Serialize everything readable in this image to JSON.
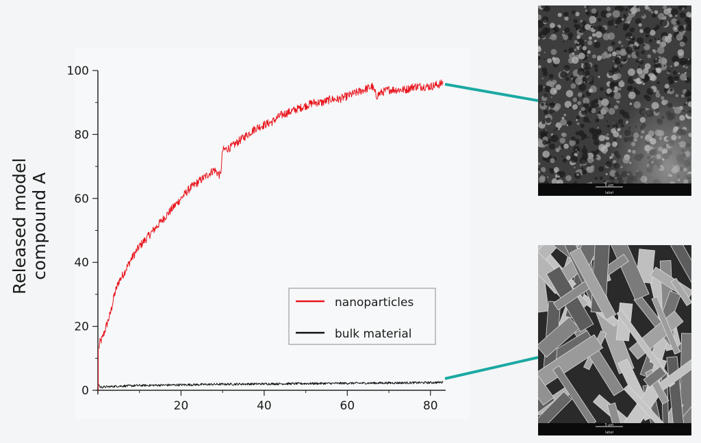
{
  "chart_data": {
    "type": "line",
    "ylabel": [
      "Released model",
      "compound A"
    ],
    "xlabel": "",
    "xlim": [
      0,
      83
    ],
    "ylim": [
      0,
      100
    ],
    "xticks": [
      20,
      40,
      60,
      80
    ],
    "yticks": [
      0,
      20,
      40,
      60,
      80,
      100
    ],
    "legend_position": "lower-right",
    "grid": false,
    "series": [
      {
        "name": "nanoparticles",
        "color": "#e8131b",
        "x": [
          0.2,
          0.5,
          1,
          2,
          3,
          4,
          5,
          6,
          8,
          10,
          12,
          14,
          16,
          18,
          20,
          22,
          24,
          26,
          28,
          29.5,
          30,
          32,
          34,
          36,
          38,
          40,
          42,
          44,
          46,
          48,
          50,
          52,
          54,
          56,
          58,
          60,
          62,
          64,
          66,
          67,
          68,
          70,
          72,
          74,
          76,
          78,
          80,
          83
        ],
        "y": [
          13,
          15,
          16,
          20,
          24,
          30,
          34,
          36,
          41,
          45,
          48,
          51,
          54,
          57,
          60,
          63,
          65,
          67,
          69,
          67,
          75,
          76,
          78,
          80,
          82,
          83,
          84,
          86,
          87,
          88,
          89,
          90,
          90,
          91,
          91,
          92,
          93,
          94,
          95,
          92,
          93,
          94,
          94,
          94,
          95,
          95,
          95,
          96
        ]
      },
      {
        "name": "bulk material",
        "color": "#111111",
        "x": [
          0.2,
          0.5,
          1,
          5,
          10,
          20,
          30,
          40,
          50,
          60,
          70,
          80,
          83
        ],
        "y": [
          2,
          1,
          1,
          1.3,
          1.5,
          1.7,
          1.9,
          2,
          2.1,
          2.2,
          2.3,
          2.4,
          2.5
        ]
      }
    ]
  },
  "images": [
    {
      "icon": "sem-micrograph-porous-network",
      "scalebar_text": "5 µm",
      "sublabel": "label"
    },
    {
      "icon": "sem-micrograph-rod-crystals",
      "scalebar_text": "5 µm",
      "sublabel": "label"
    }
  ],
  "colors": {
    "connector": "#1aa9a2",
    "background": "#f4f5f6"
  }
}
